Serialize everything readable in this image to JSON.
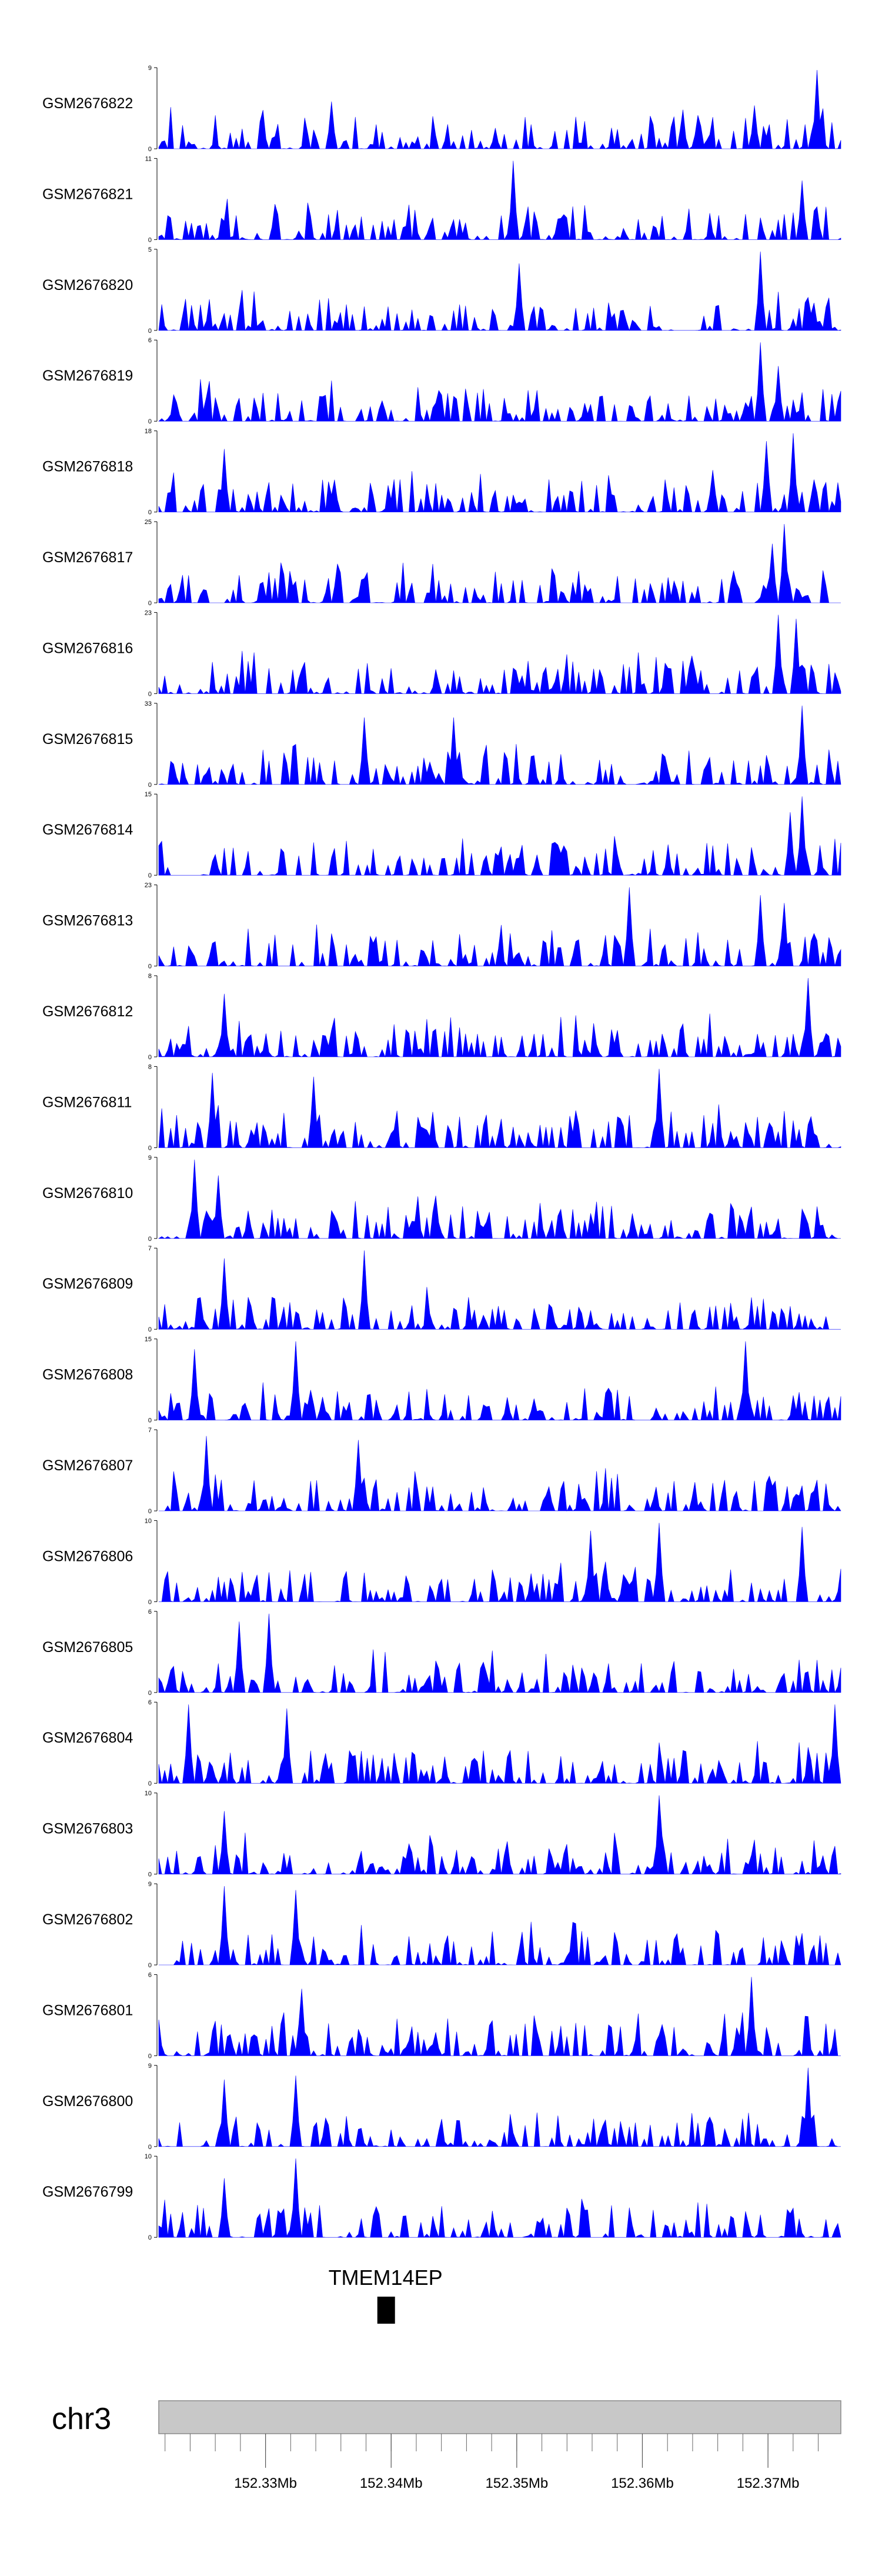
{
  "chart_data": {
    "type": "area",
    "chromosome": "chr3",
    "region_mb": [
      152.3215,
      152.3758
    ],
    "axis_ticks_mb": [
      152.33,
      152.34,
      152.35,
      152.36,
      152.37
    ],
    "axis_tick_labels": [
      "152.33Mb",
      "152.34Mb",
      "152.35Mb",
      "152.36Mb",
      "152.37Mb"
    ],
    "fill_color": "#0000ff",
    "tracks": [
      {
        "name": "GSM2676822",
        "ymax": 9,
        "ymin": 0,
        "seed": 22,
        "peaks": [
          [
            152.3353,
            0.6
          ],
          [
            152.3689,
            0.55
          ],
          [
            152.3738,
            1.0
          ]
        ]
      },
      {
        "name": "GSM2676821",
        "ymax": 11,
        "ymin": 0,
        "seed": 21,
        "peaks": [
          [
            152.3497,
            1.0
          ],
          [
            152.3728,
            0.75
          ],
          [
            152.3308,
            0.45
          ]
        ]
      },
      {
        "name": "GSM2676820",
        "ymax": 5,
        "ymin": 0,
        "seed": 20,
        "peaks": [
          [
            152.3693,
            1.0
          ],
          [
            152.3502,
            0.85
          ]
        ]
      },
      {
        "name": "GSM2676819",
        "ymax": 6,
        "ymin": 0,
        "seed": 19,
        "peaks": [
          [
            152.3693,
            1.0
          ],
          [
            152.3708,
            0.7
          ]
        ]
      },
      {
        "name": "GSM2676818",
        "ymax": 18,
        "ymin": 0,
        "seed": 18,
        "peaks": [
          [
            152.3268,
            0.8
          ],
          [
            152.3698,
            0.9
          ],
          [
            152.372,
            1.0
          ]
        ]
      },
      {
        "name": "GSM2676817",
        "ymax": 25,
        "ymin": 0,
        "seed": 17,
        "peaks": [
          [
            152.3713,
            1.0
          ],
          [
            152.3703,
            0.75
          ]
        ]
      },
      {
        "name": "GSM2676816",
        "ymax": 23,
        "ymin": 0,
        "seed": 16,
        "peaks": [
          [
            152.3708,
            1.0
          ],
          [
            152.3723,
            0.95
          ]
        ]
      },
      {
        "name": "GSM2676815",
        "ymax": 33,
        "ymin": 0,
        "seed": 15,
        "peaks": [
          [
            152.3727,
            1.0
          ],
          [
            152.3378,
            0.85
          ],
          [
            152.3449,
            0.85
          ]
        ]
      },
      {
        "name": "GSM2676814",
        "ymax": 15,
        "ymin": 0,
        "seed": 14,
        "peaks": [
          [
            152.3728,
            1.0
          ],
          [
            152.3718,
            0.8
          ]
        ]
      },
      {
        "name": "GSM2676813",
        "ymax": 23,
        "ymin": 0,
        "seed": 13,
        "peaks": [
          [
            152.3589,
            1.0
          ],
          [
            152.3693,
            0.9
          ],
          [
            152.3713,
            0.8
          ]
        ]
      },
      {
        "name": "GSM2676812",
        "ymax": 8,
        "ymin": 0,
        "seed": 12,
        "peaks": [
          [
            152.3733,
            1.0
          ],
          [
            152.3268,
            0.8
          ]
        ]
      },
      {
        "name": "GSM2676811",
        "ymax": 8,
        "ymin": 0,
        "seed": 11,
        "peaks": [
          [
            152.3613,
            1.0
          ],
          [
            152.3257,
            0.95
          ],
          [
            152.3338,
            0.9
          ]
        ]
      },
      {
        "name": "GSM2676810",
        "ymax": 9,
        "ymin": 0,
        "seed": 10,
        "peaks": [
          [
            152.3243,
            1.0
          ],
          [
            152.3263,
            0.8
          ]
        ]
      },
      {
        "name": "GSM2676809",
        "ymax": 7,
        "ymin": 0,
        "seed": 9,
        "peaks": [
          [
            152.3378,
            1.0
          ],
          [
            152.3268,
            0.9
          ]
        ]
      },
      {
        "name": "GSM2676808",
        "ymax": 15,
        "ymin": 0,
        "seed": 8,
        "peaks": [
          [
            152.3325,
            1.0
          ],
          [
            152.3683,
            1.0
          ],
          [
            152.3243,
            0.9
          ]
        ]
      },
      {
        "name": "GSM2676807",
        "ymax": 7,
        "ymin": 0,
        "seed": 7,
        "peaks": [
          [
            152.3253,
            0.95
          ],
          [
            152.3373,
            0.9
          ]
        ]
      },
      {
        "name": "GSM2676806",
        "ymax": 10,
        "ymin": 0,
        "seed": 6,
        "peaks": [
          [
            152.3613,
            1.0
          ],
          [
            152.3728,
            0.95
          ],
          [
            152.3558,
            0.9
          ]
        ]
      },
      {
        "name": "GSM2676805",
        "ymax": 6,
        "ymin": 0,
        "seed": 5,
        "peaks": [
          [
            152.3303,
            1.0
          ],
          [
            152.3278,
            0.9
          ]
        ]
      },
      {
        "name": "GSM2676804",
        "ymax": 6,
        "ymin": 0,
        "seed": 4,
        "peaks": [
          [
            152.3238,
            1.0
          ],
          [
            152.3753,
            1.0
          ],
          [
            152.3318,
            0.95
          ]
        ]
      },
      {
        "name": "GSM2676803",
        "ymax": 10,
        "ymin": 0,
        "seed": 3,
        "peaks": [
          [
            152.3613,
            1.0
          ],
          [
            152.3268,
            0.8
          ]
        ]
      },
      {
        "name": "GSM2676802",
        "ymax": 9,
        "ymin": 0,
        "seed": 2,
        "peaks": [
          [
            152.3268,
            1.0
          ],
          [
            152.3323,
            0.95
          ]
        ]
      },
      {
        "name": "GSM2676801",
        "ymax": 6,
        "ymin": 0,
        "seed": 1,
        "peaks": [
          [
            152.3688,
            1.0
          ],
          [
            152.3328,
            0.85
          ]
        ]
      },
      {
        "name": "GSM2676800",
        "ymax": 9,
        "ymin": 0,
        "seed": 100,
        "peaks": [
          [
            152.3733,
            1.0
          ],
          [
            152.3323,
            0.9
          ],
          [
            152.3268,
            0.85
          ]
        ]
      },
      {
        "name": "GSM2676799",
        "ymax": 10,
        "ymin": 0,
        "seed": 99,
        "peaks": [
          [
            152.3323,
            1.0
          ],
          [
            152.3268,
            0.75
          ]
        ]
      }
    ],
    "genes": [
      {
        "name": "TMEM14EP",
        "start_mb": 152.3389,
        "end_mb": 152.3402
      }
    ]
  }
}
